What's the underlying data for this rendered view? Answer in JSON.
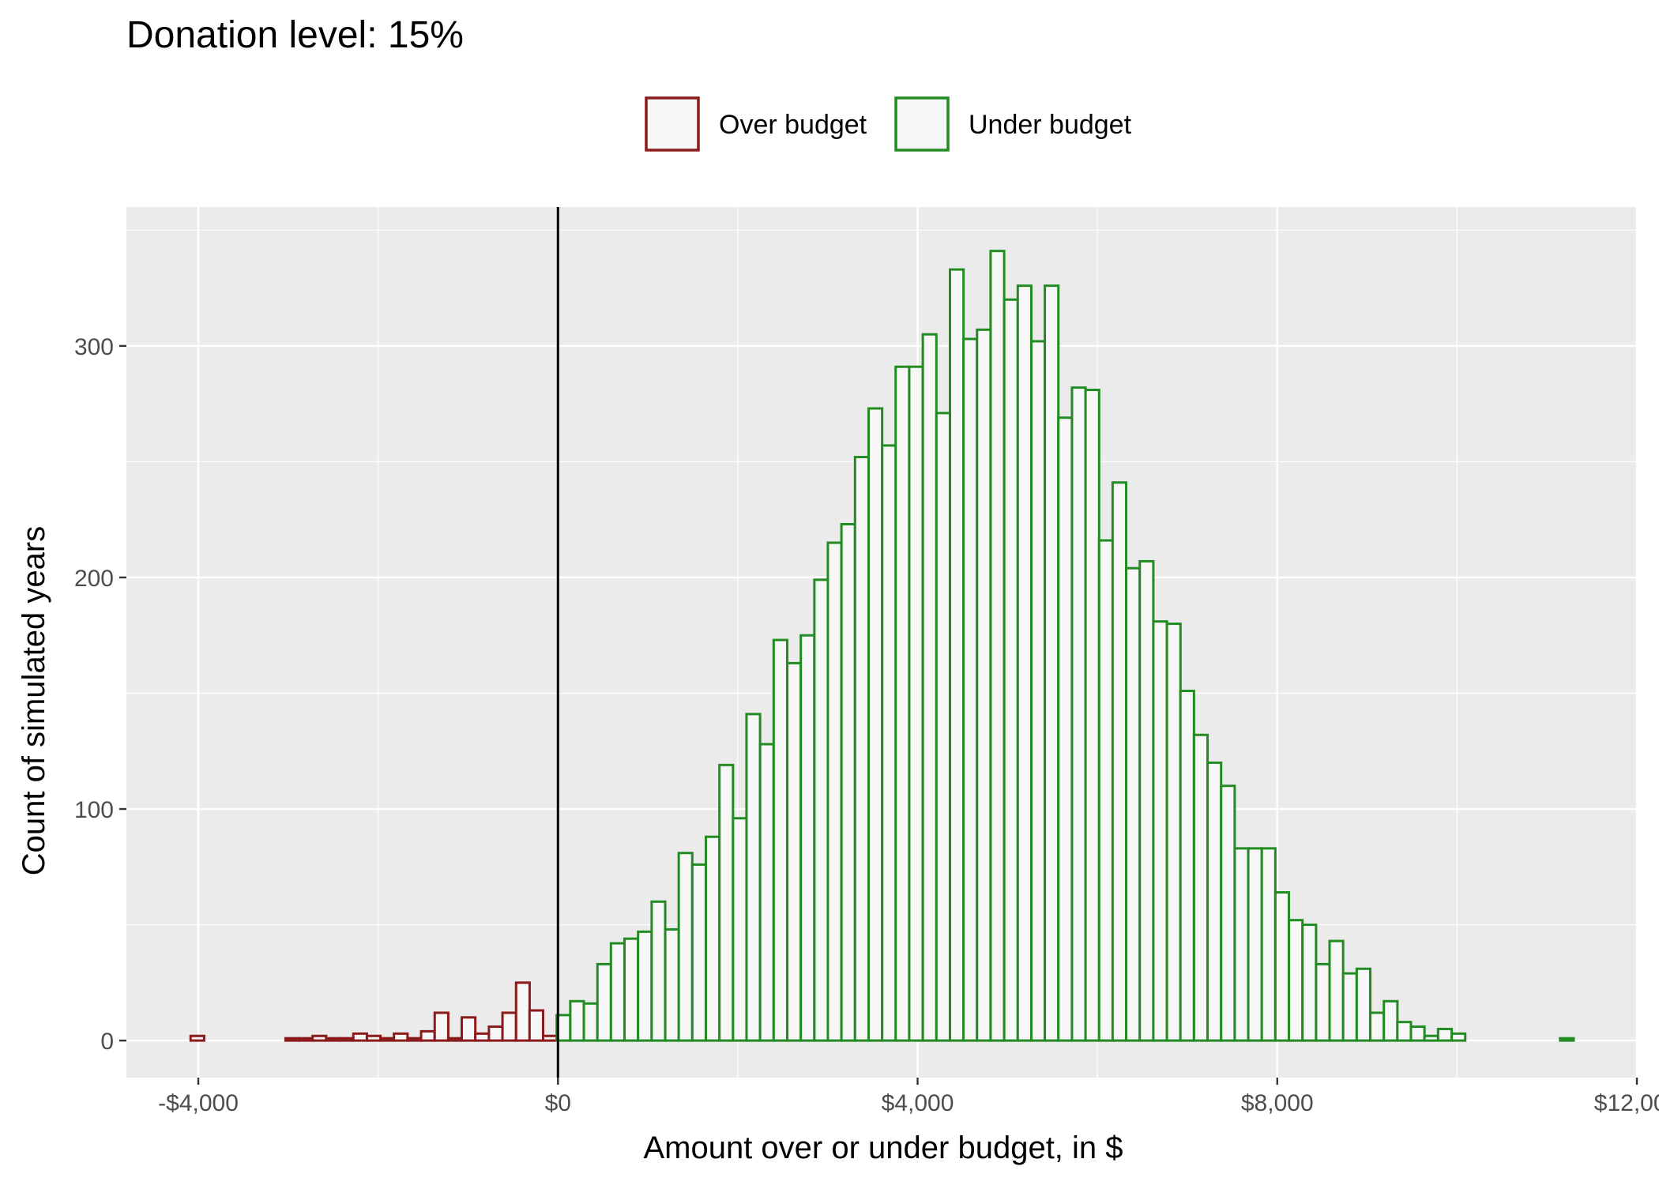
{
  "chart_data": {
    "type": "bar",
    "title": "Donation level: 15%",
    "xlabel": "Amount over or under budget, in $",
    "ylabel": "Count of simulated years",
    "xlim": [
      -4800,
      12000
    ],
    "ylim": [
      -16,
      360
    ],
    "x_ticks": [
      -4000,
      0,
      4000,
      8000,
      12000
    ],
    "x_tick_labels": [
      "-$4,000",
      "$0",
      "$4,000",
      "$8,000",
      "$12,000"
    ],
    "y_ticks": [
      0,
      100,
      200,
      300
    ],
    "y_tick_labels": [
      "0",
      "100",
      "200",
      "300"
    ],
    "bin_width": 150.8,
    "reference_line_x": 0,
    "grid": true,
    "legend": {
      "position": "top",
      "items": [
        {
          "label": "Over budget",
          "color": "#8b1a1a"
        },
        {
          "label": "Under budget",
          "color": "#228b22"
        }
      ]
    },
    "colors": {
      "over": "#8b1a1a",
      "under": "#228b22",
      "panel": "#ebebeb",
      "grid": "#ffffff",
      "fill": "#f7f7f7"
    },
    "series": [
      {
        "name": "Over budget",
        "bin_starts": [
          -4086,
          -3935,
          -3784,
          -3633,
          -3483,
          -3332,
          -3181,
          -3030,
          -2879,
          -2729,
          -2578,
          -2427,
          -2276,
          -2125,
          -1974,
          -1824,
          -1673,
          -1522,
          -1371,
          -1220,
          -1070,
          -919,
          -768,
          -617,
          -466,
          -316,
          -165
        ],
        "values": [
          2,
          0,
          0,
          0,
          0,
          0,
          0,
          1,
          1,
          2,
          1,
          1,
          3,
          2,
          1,
          3,
          1,
          4,
          12,
          1,
          10,
          3,
          6,
          12,
          25,
          13,
          2
        ]
      },
      {
        "name": "Under budget",
        "bin_starts": [
          -14,
          137,
          288,
          439,
          589,
          740,
          891,
          1042,
          1193,
          1343,
          1494,
          1645,
          1796,
          1947,
          2097,
          2248,
          2399,
          2550,
          2701,
          2852,
          3002,
          3153,
          3304,
          3455,
          3606,
          3756,
          3907,
          4058,
          4209,
          4360,
          4510,
          4661,
          4812,
          4963,
          5114,
          5265,
          5415,
          5566,
          5717,
          5868,
          6019,
          6169,
          6320,
          6471,
          6622,
          6773,
          6923,
          7074,
          7225,
          7376,
          7527,
          7678,
          7828,
          7979,
          8130,
          8281,
          8432,
          8582,
          8733,
          8884,
          9035,
          9186,
          9336,
          9487,
          9638,
          9789,
          9940,
          10091,
          10241,
          10392,
          10543,
          10694,
          10845,
          10995,
          11146
        ],
        "values": [
          11,
          17,
          16,
          33,
          42,
          44,
          47,
          60,
          48,
          81,
          76,
          88,
          119,
          96,
          141,
          128,
          173,
          163,
          175,
          199,
          215,
          223,
          252,
          273,
          257,
          291,
          291,
          305,
          271,
          333,
          303,
          307,
          341,
          320,
          326,
          302,
          326,
          269,
          282,
          281,
          216,
          241,
          204,
          207,
          181,
          180,
          151,
          132,
          120,
          110,
          83,
          83,
          83,
          64,
          52,
          50,
          33,
          43,
          29,
          31,
          12,
          17,
          8,
          6,
          2,
          5,
          3,
          0,
          0,
          0,
          0,
          0,
          0,
          0,
          1
        ]
      }
    ]
  }
}
